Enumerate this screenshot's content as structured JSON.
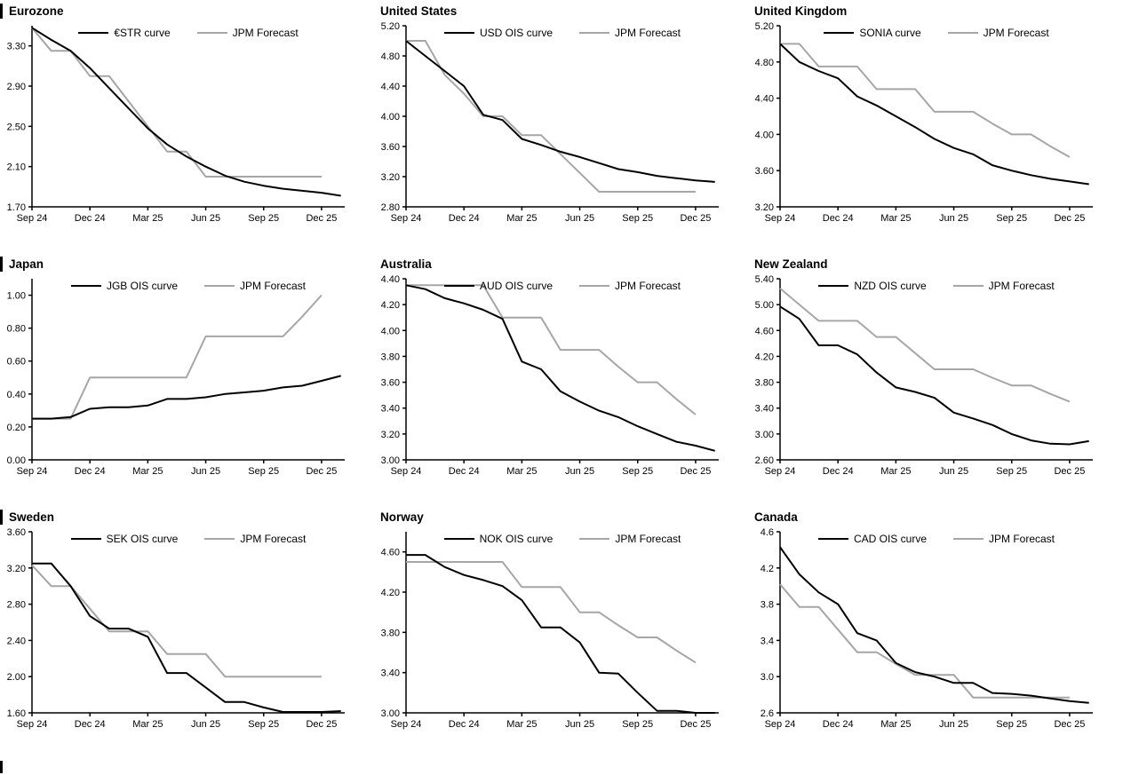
{
  "colors": {
    "series": "#000000",
    "forecast": "#a6a6a6"
  },
  "x_sampling": "monthly from Sep 24 (index 0) to Jan 26 (index 16); forecast series ends at Dec 25 (index 15)",
  "chart_data": [
    {
      "type": "line",
      "title": "Eurozone",
      "y_min": 1.7,
      "y_max": 3.5,
      "y_ticks": [
        "3.30",
        "2.90",
        "2.50",
        "2.10",
        "1.70"
      ],
      "x_tick_labels": [
        "Sep 24",
        "Dec 24",
        "Mar 25",
        "Jun 25",
        "Sep 25",
        "Dec 25"
      ],
      "series": [
        {
          "name": "€STR curve",
          "color": "#000000",
          "values": [
            3.48,
            3.36,
            3.25,
            3.08,
            2.88,
            2.68,
            2.48,
            2.32,
            2.2,
            2.1,
            2.01,
            1.95,
            1.91,
            1.88,
            1.86,
            1.84,
            1.81
          ]
        },
        {
          "name": "JPM Forecast",
          "color": "#a6a6a6",
          "values": [
            3.48,
            3.25,
            3.25,
            3.0,
            3.0,
            2.75,
            2.5,
            2.25,
            2.25,
            2.0,
            2.0,
            2.0,
            2.0,
            2.0,
            2.0,
            2.0
          ]
        }
      ]
    },
    {
      "type": "line",
      "title": "United States",
      "y_min": 2.8,
      "y_max": 5.2,
      "y_ticks": [
        "5.20",
        "4.80",
        "4.40",
        "4.00",
        "3.60",
        "3.20",
        "2.80"
      ],
      "x_tick_labels": [
        "Sep 24",
        "Dec 24",
        "Mar 25",
        "Jun 25",
        "Sep 25",
        "Dec 25"
      ],
      "series": [
        {
          "name": "USD OIS curve",
          "color": "#000000",
          "values": [
            5.0,
            4.8,
            4.6,
            4.4,
            4.02,
            3.95,
            3.7,
            3.62,
            3.53,
            3.46,
            3.38,
            3.3,
            3.26,
            3.21,
            3.18,
            3.15,
            3.13
          ]
        },
        {
          "name": "JPM Forecast",
          "color": "#a6a6a6",
          "values": [
            5.0,
            5.0,
            4.55,
            4.3,
            4.0,
            4.0,
            3.75,
            3.75,
            3.5,
            3.25,
            3.0,
            3.0,
            3.0,
            3.0,
            3.0,
            3.0
          ]
        }
      ]
    },
    {
      "type": "line",
      "title": "United Kingdom",
      "y_min": 3.2,
      "y_max": 5.2,
      "y_ticks": [
        "5.20",
        "4.80",
        "4.40",
        "4.00",
        "3.60",
        "3.20"
      ],
      "x_tick_labels": [
        "Sep 24",
        "Dec 24",
        "Mar 25",
        "Jun 25",
        "Sep 25",
        "Dec 25"
      ],
      "series": [
        {
          "name": "SONIA curve",
          "color": "#000000",
          "values": [
            5.0,
            4.8,
            4.7,
            4.62,
            4.42,
            4.32,
            4.2,
            4.08,
            3.95,
            3.85,
            3.78,
            3.66,
            3.6,
            3.55,
            3.51,
            3.48,
            3.45
          ]
        },
        {
          "name": "JPM Forecast",
          "color": "#a6a6a6",
          "values": [
            5.0,
            5.0,
            4.75,
            4.75,
            4.75,
            4.5,
            4.5,
            4.5,
            4.25,
            4.25,
            4.25,
            4.12,
            4.0,
            4.0,
            3.87,
            3.75
          ]
        }
      ]
    },
    {
      "type": "line",
      "title": "Japan",
      "y_min": 0.0,
      "y_max": 1.1,
      "y_ticks": [
        "1.00",
        "0.80",
        "0.60",
        "0.40",
        "0.20",
        "0.00"
      ],
      "x_tick_labels": [
        "Sep 24",
        "Dec 24",
        "Mar 25",
        "Jun 25",
        "Sep 25",
        "Dec 25"
      ],
      "series": [
        {
          "name": "JGB OIS curve",
          "color": "#000000",
          "values": [
            0.25,
            0.25,
            0.26,
            0.31,
            0.32,
            0.32,
            0.33,
            0.37,
            0.37,
            0.38,
            0.4,
            0.41,
            0.42,
            0.44,
            0.45,
            0.48,
            0.51
          ]
        },
        {
          "name": "JPM Forecast",
          "color": "#a6a6a6",
          "values": [
            0.25,
            0.25,
            0.25,
            0.5,
            0.5,
            0.5,
            0.5,
            0.5,
            0.5,
            0.75,
            0.75,
            0.75,
            0.75,
            0.75,
            0.87,
            1.0
          ]
        }
      ]
    },
    {
      "type": "line",
      "title": "Australia",
      "y_min": 3.0,
      "y_max": 4.4,
      "y_ticks": [
        "4.40",
        "4.20",
        "4.00",
        "3.80",
        "3.60",
        "3.40",
        "3.20",
        "3.00"
      ],
      "x_tick_labels": [
        "Sep 24",
        "Dec 24",
        "Mar 25",
        "Jun 25",
        "Sep 25",
        "Dec 25"
      ],
      "series": [
        {
          "name": "AUD OIS curve",
          "color": "#000000",
          "values": [
            4.35,
            4.32,
            4.25,
            4.21,
            4.16,
            4.09,
            3.76,
            3.7,
            3.53,
            3.45,
            3.38,
            3.33,
            3.26,
            3.2,
            3.14,
            3.11,
            3.07
          ]
        },
        {
          "name": "JPM Forecast",
          "color": "#a6a6a6",
          "values": [
            4.35,
            4.35,
            4.35,
            4.35,
            4.35,
            4.1,
            4.1,
            4.1,
            3.85,
            3.85,
            3.85,
            3.72,
            3.6,
            3.6,
            3.47,
            3.35
          ]
        }
      ]
    },
    {
      "type": "line",
      "title": "New Zealand",
      "y_min": 2.6,
      "y_max": 5.4,
      "y_ticks": [
        "5.40",
        "5.00",
        "4.60",
        "4.20",
        "3.80",
        "3.40",
        "3.00",
        "2.60"
      ],
      "x_tick_labels": [
        "Sep 24",
        "Dec 24",
        "Mar 25",
        "Jun 25",
        "Sep 25",
        "Dec 25"
      ],
      "series": [
        {
          "name": "NZD OIS curve",
          "color": "#000000",
          "values": [
            4.97,
            4.78,
            4.37,
            4.37,
            4.23,
            3.95,
            3.72,
            3.65,
            3.56,
            3.33,
            3.24,
            3.14,
            3.0,
            2.9,
            2.85,
            2.84,
            2.89
          ]
        },
        {
          "name": "JPM Forecast",
          "color": "#a6a6a6",
          "values": [
            5.25,
            5.0,
            4.75,
            4.75,
            4.75,
            4.5,
            4.5,
            4.25,
            4.0,
            4.0,
            4.0,
            3.87,
            3.75,
            3.75,
            3.62,
            3.5
          ]
        }
      ]
    },
    {
      "type": "line",
      "title": "Sweden",
      "y_min": 1.6,
      "y_max": 3.6,
      "y_ticks": [
        "3.60",
        "3.20",
        "2.80",
        "2.40",
        "2.00",
        "1.60"
      ],
      "x_tick_labels": [
        "Sep 24",
        "Dec 24",
        "Mar 25",
        "Jun 25",
        "Sep 25",
        "Dec 25"
      ],
      "series": [
        {
          "name": "SEK OIS curve",
          "color": "#000000",
          "values": [
            3.25,
            3.25,
            3.0,
            2.67,
            2.53,
            2.53,
            2.44,
            2.04,
            2.04,
            1.88,
            1.72,
            1.72,
            1.66,
            1.61,
            1.61,
            1.61,
            1.62
          ]
        },
        {
          "name": "JPM Forecast",
          "color": "#a6a6a6",
          "values": [
            3.23,
            3.0,
            3.0,
            2.75,
            2.5,
            2.5,
            2.5,
            2.25,
            2.25,
            2.25,
            2.0,
            2.0,
            2.0,
            2.0,
            2.0,
            2.0
          ]
        }
      ]
    },
    {
      "type": "line",
      "title": "Norway",
      "y_min": 3.0,
      "y_max": 4.8,
      "y_ticks": [
        "4.60",
        "4.20",
        "3.80",
        "3.40",
        "3.00"
      ],
      "x_tick_labels": [
        "Sep 24",
        "Dec 24",
        "Mar 25",
        "Jun 25",
        "Sep 25",
        "Dec 25"
      ],
      "series": [
        {
          "name": "NOK OIS curve",
          "color": "#000000",
          "values": [
            4.57,
            4.57,
            4.45,
            4.37,
            4.32,
            4.26,
            4.12,
            3.85,
            3.85,
            3.7,
            3.4,
            3.39,
            3.2,
            3.02,
            3.02,
            3.0,
            3.0
          ]
        },
        {
          "name": "JPM Forecast",
          "color": "#a6a6a6",
          "values": [
            4.5,
            4.5,
            4.5,
            4.5,
            4.5,
            4.5,
            4.25,
            4.25,
            4.25,
            4.0,
            4.0,
            3.87,
            3.75,
            3.75,
            3.62,
            3.5
          ]
        }
      ]
    },
    {
      "type": "line",
      "title": "Canada",
      "y_min": 2.6,
      "y_max": 4.6,
      "y_ticks": [
        "4.6",
        "4.2",
        "3.8",
        "3.4",
        "3.0",
        "2.6"
      ],
      "x_tick_labels": [
        "Sep 24",
        "Dec 24",
        "Mar 25",
        "Jun 25",
        "Sep 25",
        "Dec 25"
      ],
      "series": [
        {
          "name": "CAD OIS curve",
          "color": "#000000",
          "values": [
            4.43,
            4.13,
            3.93,
            3.8,
            3.48,
            3.4,
            3.15,
            3.05,
            3.0,
            2.93,
            2.93,
            2.82,
            2.81,
            2.79,
            2.76,
            2.73,
            2.71
          ]
        },
        {
          "name": "JPM Forecast",
          "color": "#a6a6a6",
          "values": [
            4.02,
            3.77,
            3.77,
            3.52,
            3.27,
            3.27,
            3.14,
            3.02,
            3.02,
            3.02,
            2.77,
            2.77,
            2.77,
            2.77,
            2.77,
            2.77
          ]
        }
      ]
    }
  ]
}
